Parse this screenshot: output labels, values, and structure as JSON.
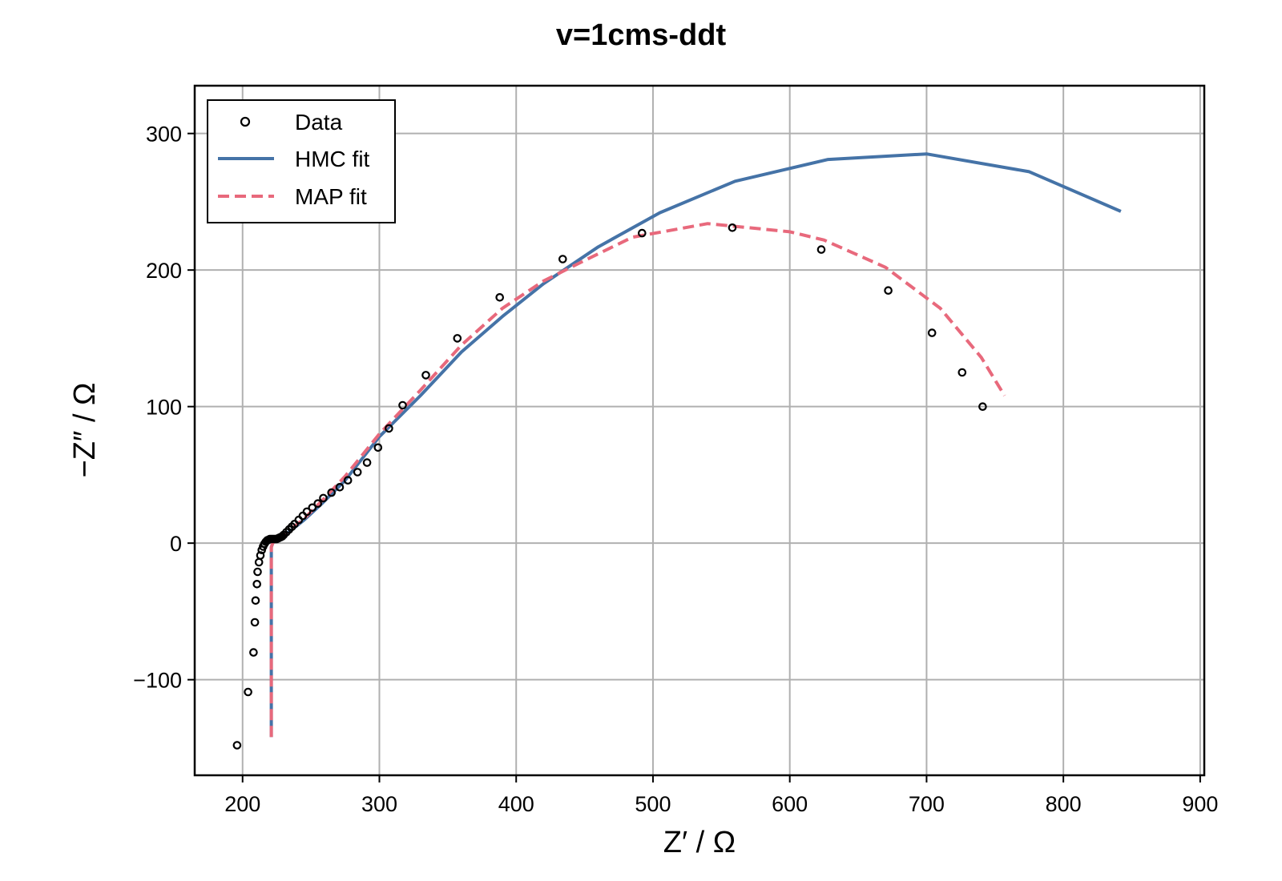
{
  "chart_data": {
    "type": "scatter",
    "title": "v=1cms-ddt",
    "xlabel": "Z′ / Ω",
    "ylabel": "−Z″ / Ω",
    "xlim": [
      165,
      903
    ],
    "ylim": [
      -170,
      335
    ],
    "xticks": [
      200,
      300,
      400,
      500,
      600,
      700,
      800,
      900
    ],
    "yticks": [
      -100,
      0,
      100,
      200,
      300
    ],
    "xtick_labels": [
      "200",
      "300",
      "400",
      "500",
      "600",
      "700",
      "800",
      "900"
    ],
    "ytick_labels": [
      "−100",
      "0",
      "100",
      "200",
      "300"
    ],
    "grid": true,
    "legend_position": "top-left",
    "series": [
      {
        "name": "Data",
        "kind": "scatter",
        "color": "#000000",
        "points": [
          [
            196,
            -148
          ],
          [
            204,
            -109
          ],
          [
            208,
            -80
          ],
          [
            209,
            -58
          ],
          [
            209.5,
            -42
          ],
          [
            210.5,
            -30
          ],
          [
            211,
            -21
          ],
          [
            212,
            -14
          ],
          [
            213,
            -9
          ],
          [
            214,
            -5
          ],
          [
            215,
            -2.5
          ],
          [
            216,
            -0.5
          ],
          [
            217,
            1
          ],
          [
            218,
            2
          ],
          [
            219,
            2.5
          ],
          [
            220,
            3
          ],
          [
            221,
            3
          ],
          [
            222,
            3
          ],
          [
            223,
            3
          ],
          [
            224,
            3
          ],
          [
            225,
            3
          ],
          [
            226,
            3.5
          ],
          [
            227,
            4
          ],
          [
            228,
            4.5
          ],
          [
            229,
            5
          ],
          [
            230,
            6
          ],
          [
            232,
            8
          ],
          [
            234,
            10
          ],
          [
            236,
            12
          ],
          [
            238,
            14
          ],
          [
            241,
            17
          ],
          [
            244,
            20
          ],
          [
            247,
            23
          ],
          [
            251,
            26
          ],
          [
            255,
            29
          ],
          [
            259,
            33
          ],
          [
            265,
            37
          ],
          [
            271,
            41
          ],
          [
            277,
            46
          ],
          [
            284,
            52
          ],
          [
            291,
            59
          ],
          [
            299,
            70
          ],
          [
            307,
            84
          ],
          [
            317,
            101
          ],
          [
            334,
            123
          ],
          [
            357,
            150
          ],
          [
            388,
            180
          ],
          [
            434,
            208
          ],
          [
            492,
            227
          ],
          [
            558,
            231
          ],
          [
            623,
            215
          ],
          [
            672,
            185
          ],
          [
            704,
            154
          ],
          [
            726,
            125
          ],
          [
            741,
            100
          ]
        ]
      },
      {
        "name": "HMC fit",
        "kind": "line",
        "color": "#4573a7",
        "dash": "solid",
        "points": [
          [
            221,
            -142
          ],
          [
            221,
            -100
          ],
          [
            221,
            -50
          ],
          [
            221,
            -10
          ],
          [
            221,
            -3
          ],
          [
            222,
            0
          ],
          [
            224,
            2
          ],
          [
            228,
            4
          ],
          [
            235,
            9
          ],
          [
            245,
            17
          ],
          [
            258,
            29
          ],
          [
            275,
            46
          ],
          [
            300,
            78
          ],
          [
            330,
            108
          ],
          [
            360,
            140
          ],
          [
            390,
            166
          ],
          [
            420,
            190
          ],
          [
            460,
            217
          ],
          [
            505,
            242
          ],
          [
            560,
            265
          ],
          [
            628,
            281
          ],
          [
            700,
            285
          ],
          [
            775,
            272
          ],
          [
            842,
            243
          ]
        ]
      },
      {
        "name": "MAP fit",
        "kind": "line",
        "color": "#e8697c",
        "dash": "dashed",
        "points": [
          [
            221,
            -142
          ],
          [
            221,
            -100
          ],
          [
            221,
            -50
          ],
          [
            221,
            -10
          ],
          [
            221,
            -3
          ],
          [
            222,
            0
          ],
          [
            224,
            2
          ],
          [
            228,
            4
          ],
          [
            235,
            10
          ],
          [
            245,
            18
          ],
          [
            258,
            31
          ],
          [
            275,
            49
          ],
          [
            300,
            80
          ],
          [
            330,
            112
          ],
          [
            360,
            145
          ],
          [
            390,
            172
          ],
          [
            420,
            192
          ],
          [
            450,
            207
          ],
          [
            485,
            224
          ],
          [
            540,
            234
          ],
          [
            600,
            228
          ],
          [
            625,
            222
          ],
          [
            670,
            202
          ],
          [
            710,
            172
          ],
          [
            740,
            136
          ],
          [
            757,
            108
          ]
        ]
      }
    ]
  }
}
